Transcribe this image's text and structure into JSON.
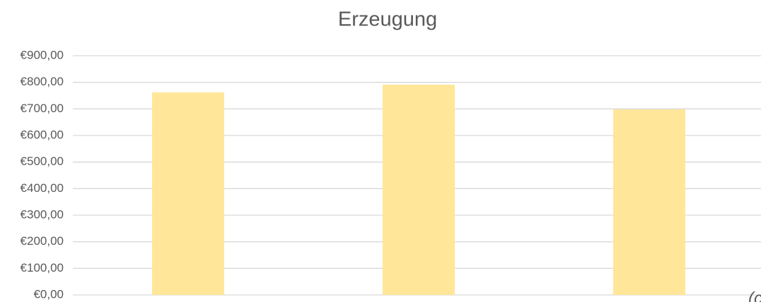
{
  "chart_data": {
    "type": "bar",
    "title": "Erzeugung",
    "categories": [
      null,
      null,
      null
    ],
    "values": [
      762,
      791,
      698
    ],
    "color": "#ffe699",
    "ylim": [
      0,
      900
    ],
    "yticks": [
      {
        "value": 0,
        "label": "€0,00"
      },
      {
        "value": 100,
        "label": "€100,00"
      },
      {
        "value": 200,
        "label": "€200,00"
      },
      {
        "value": 300,
        "label": "€300,00"
      },
      {
        "value": 400,
        "label": "€400,00"
      },
      {
        "value": 500,
        "label": "€500,00"
      },
      {
        "value": 600,
        "label": "€600,00"
      },
      {
        "value": 700,
        "label": "€700,00"
      },
      {
        "value": 800,
        "label": "€800,00"
      },
      {
        "value": 900,
        "label": "€900,00"
      }
    ],
    "grid": true,
    "annotation": "(c"
  }
}
